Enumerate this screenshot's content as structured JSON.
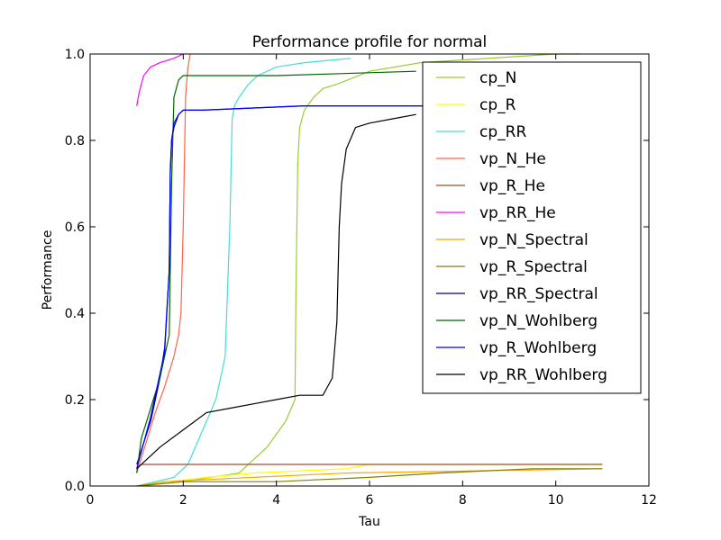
{
  "chart_data": {
    "type": "line",
    "title": "Performance profile for normal",
    "xlabel": "Tau",
    "ylabel": "Performance",
    "xlim": [
      0,
      12
    ],
    "ylim": [
      0,
      1
    ],
    "xticks": [
      "0",
      "2",
      "4",
      "6",
      "8",
      "10",
      "12"
    ],
    "yticks": [
      "0.0",
      "0.2",
      "0.4",
      "0.6",
      "0.8",
      "1.0"
    ],
    "grid": false,
    "legend_position": "top-right",
    "series": [
      {
        "name": "cp_N",
        "color": "#9acd32",
        "x": [
          1.0,
          2.0,
          3.2,
          3.5,
          3.8,
          4.0,
          4.2,
          4.4,
          4.42,
          4.46,
          4.5,
          4.6,
          4.8,
          5.0,
          5.3,
          6.0,
          7.1,
          10.0,
          10.5
        ],
        "y": [
          0.0,
          0.01,
          0.03,
          0.06,
          0.09,
          0.12,
          0.15,
          0.2,
          0.45,
          0.75,
          0.83,
          0.87,
          0.9,
          0.92,
          0.93,
          0.96,
          0.98,
          1.0,
          1.0
        ]
      },
      {
        "name": "cp_R",
        "color": "#ffff00",
        "x": [
          1.0,
          1.7,
          2.5,
          3.5,
          5.5,
          6.0,
          11.0
        ],
        "y": [
          0.0,
          0.01,
          0.02,
          0.03,
          0.04,
          0.05,
          0.05
        ]
      },
      {
        "name": "cp_RR",
        "color": "#40e0d0",
        "x": [
          1.0,
          1.8,
          2.1,
          2.3,
          2.5,
          2.7,
          2.9,
          3.0,
          3.05,
          3.1,
          3.2,
          3.4,
          3.6,
          4.0,
          4.6,
          5.6
        ],
        "y": [
          0.0,
          0.02,
          0.05,
          0.1,
          0.15,
          0.2,
          0.3,
          0.6,
          0.85,
          0.88,
          0.9,
          0.93,
          0.95,
          0.97,
          0.98,
          0.99
        ]
      },
      {
        "name": "vp_N_He",
        "color": "#ff6347",
        "x": [
          1.0,
          1.2,
          1.4,
          1.6,
          1.8,
          1.9,
          1.95,
          2.0,
          2.05,
          2.1,
          2.15
        ],
        "y": [
          0.03,
          0.1,
          0.17,
          0.23,
          0.3,
          0.35,
          0.4,
          0.6,
          0.9,
          0.97,
          1.0
        ]
      },
      {
        "name": "vp_R_He",
        "color": "#a0522d",
        "x": [
          1.0,
          1.1,
          2.0,
          11.0
        ],
        "y": [
          0.04,
          0.05,
          0.05,
          0.05
        ]
      },
      {
        "name": "vp_RR_He",
        "color": "#ff00ff",
        "x": [
          1.0,
          1.05,
          1.15,
          1.3,
          1.5,
          1.8,
          2.0
        ],
        "y": [
          0.88,
          0.91,
          0.95,
          0.97,
          0.98,
          0.99,
          1.0
        ]
      },
      {
        "name": "vp_N_Spectral",
        "color": "#ffa500",
        "x": [
          1.0,
          1.6,
          3.5,
          5.5,
          11.0
        ],
        "y": [
          0.0,
          0.01,
          0.02,
          0.03,
          0.04
        ]
      },
      {
        "name": "vp_R_Spectral",
        "color": "#808000",
        "x": [
          1.0,
          2.0,
          4.0,
          6.0,
          7.5,
          9.5,
          11.0
        ],
        "y": [
          0.0,
          0.01,
          0.01,
          0.02,
          0.03,
          0.04,
          0.04
        ]
      },
      {
        "name": "vp_RR_Spectral",
        "color": "#00008b",
        "x": [
          1.0,
          1.3,
          1.5,
          1.6,
          1.7,
          1.72,
          1.75,
          1.8,
          1.9,
          2.0,
          2.4,
          4.6,
          9.0
        ],
        "y": [
          0.05,
          0.15,
          0.25,
          0.32,
          0.5,
          0.72,
          0.8,
          0.83,
          0.86,
          0.87,
          0.87,
          0.88,
          0.88
        ]
      },
      {
        "name": "vp_N_Wohlberg",
        "color": "#006400",
        "x": [
          1.0,
          1.1,
          1.3,
          1.5,
          1.7,
          1.75,
          1.8,
          1.9,
          2.0,
          4.0,
          7.0
        ],
        "y": [
          0.03,
          0.11,
          0.18,
          0.25,
          0.35,
          0.7,
          0.9,
          0.94,
          0.95,
          0.95,
          0.96
        ]
      },
      {
        "name": "vp_R_Wohlberg",
        "color": "#0000ff",
        "x": [
          1.0,
          1.3,
          1.5,
          1.6,
          1.7,
          1.72,
          1.75,
          1.8,
          1.9,
          2.0,
          2.4,
          4.6,
          9.0
        ],
        "y": [
          0.04,
          0.16,
          0.26,
          0.31,
          0.5,
          0.73,
          0.8,
          0.84,
          0.86,
          0.87,
          0.87,
          0.88,
          0.88
        ]
      },
      {
        "name": "vp_RR_Wohlberg",
        "color": "#000000",
        "x": [
          1.0,
          1.3,
          1.5,
          2.0,
          2.5,
          3.0,
          3.5,
          4.0,
          4.5,
          5.0,
          5.2,
          5.3,
          5.35,
          5.4,
          5.5,
          5.7,
          6.0,
          6.5,
          7.0
        ],
        "y": [
          0.04,
          0.07,
          0.09,
          0.13,
          0.17,
          0.18,
          0.19,
          0.2,
          0.21,
          0.21,
          0.25,
          0.38,
          0.6,
          0.7,
          0.78,
          0.83,
          0.84,
          0.85,
          0.86
        ]
      }
    ]
  }
}
